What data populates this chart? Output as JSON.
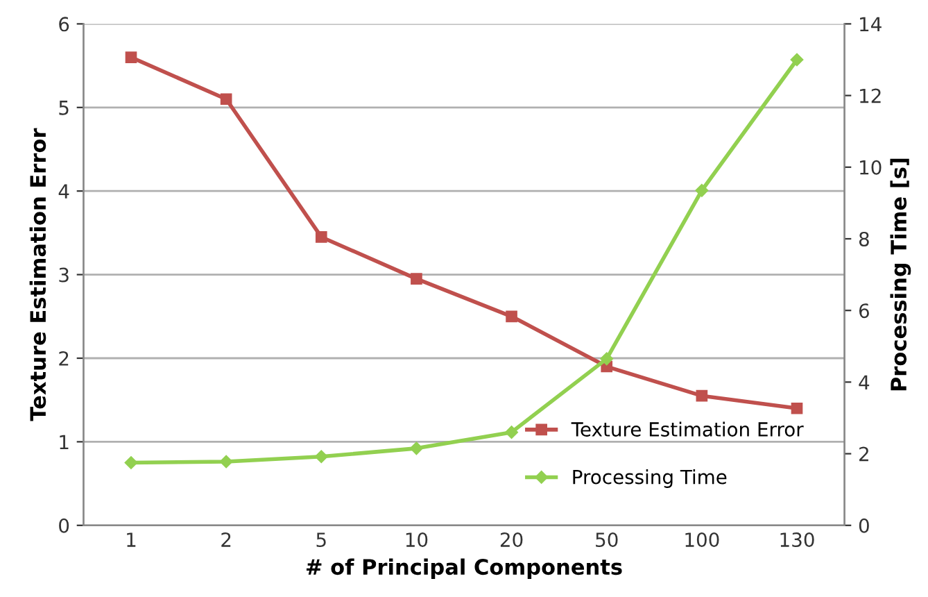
{
  "chart_data": {
    "type": "line",
    "xlabel": "# of Principal Components",
    "ylabel": "Texture Estimation Error",
    "y2label": "Processing Time [s]",
    "categories": [
      "1",
      "2",
      "5",
      "10",
      "20",
      "50",
      "100",
      "130"
    ],
    "series": [
      {
        "name": "Texture Estimation Error",
        "color": "#c0504d",
        "marker": "square",
        "values": [
          5.6,
          5.1,
          3.45,
          2.95,
          2.5,
          1.9,
          1.55,
          1.4
        ]
      },
      {
        "name": "Processing Time",
        "color": "#92d050",
        "marker": "diamond",
        "axis": "y2",
        "values": [
          1.75,
          1.78,
          1.92,
          2.15,
          2.6,
          4.65,
          9.35,
          13.0
        ]
      }
    ],
    "ylim": [
      0,
      6
    ],
    "yticks": [
      0,
      1,
      2,
      3,
      4,
      5,
      6
    ],
    "y2lim": [
      0,
      14
    ],
    "y2ticks": [
      0,
      2,
      4,
      6,
      8,
      10,
      12,
      14
    ],
    "grid": "y",
    "legend": "bottom right",
    "line_style": "solid"
  }
}
